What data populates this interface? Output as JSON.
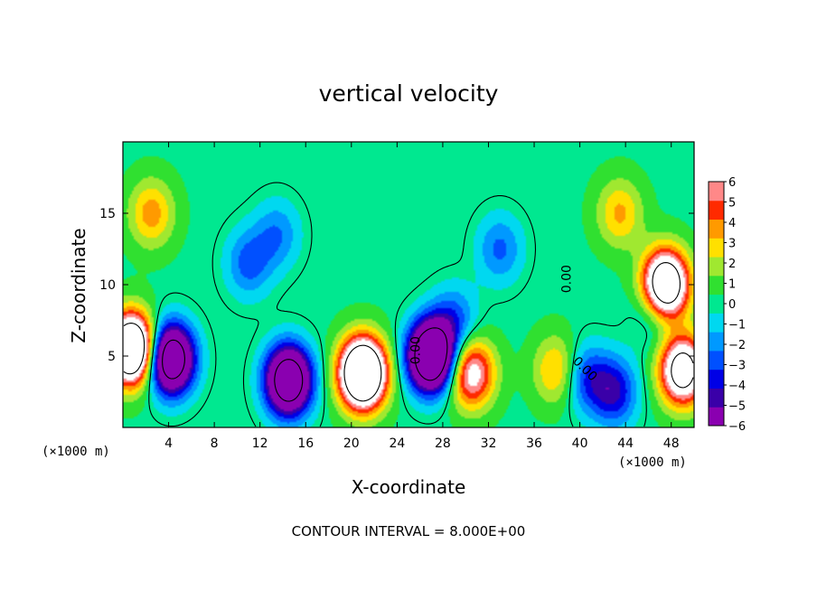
{
  "chart_data": {
    "type": "heatmap",
    "title": "vertical velocity",
    "xlabel": "X-coordinate",
    "ylabel": "Z-coordinate",
    "x_unit_label": "(×1000 m)",
    "footer": "CONTOUR INTERVAL = 8.000E+00",
    "xlim": [
      0,
      50
    ],
    "ylim": [
      0,
      20
    ],
    "x_ticks": [
      4,
      8,
      12,
      16,
      20,
      24,
      28,
      32,
      36,
      40,
      44,
      48
    ],
    "y_ticks": [
      5,
      10,
      15
    ],
    "contour_label": "0.00",
    "colorbar": {
      "range": [
        -6,
        6
      ],
      "ticks": [
        6,
        5,
        4,
        3,
        2,
        1,
        0,
        -1,
        -2,
        -3,
        -4,
        -5,
        -6
      ],
      "above_max_color": "#ffffff",
      "colors": [
        "#8a00b0",
        "#3a00a8",
        "#0000e6",
        "#0050ff",
        "#0099ff",
        "#00d8f0",
        "#00e890",
        "#30e030",
        "#a0e830",
        "#ffe000",
        "#ff9a00",
        "#ff2a00",
        "#ff8888"
      ]
    },
    "features": [
      {
        "x": 0.8,
        "z": 5.5,
        "w": 14
      },
      {
        "x": 4.2,
        "z": 4.8,
        "w": -12
      },
      {
        "x": 14.5,
        "z": 3.3,
        "w": -12
      },
      {
        "x": 21.0,
        "z": 3.8,
        "w": 15
      },
      {
        "x": 27.0,
        "z": 5.0,
        "w": -14
      },
      {
        "x": 30.5,
        "z": 3.8,
        "w": 7
      },
      {
        "x": 11.0,
        "z": 11.5,
        "w": -3
      },
      {
        "x": 13.5,
        "z": 13.5,
        "w": -2.5
      },
      {
        "x": 33.0,
        "z": 12.5,
        "w": -2.8
      },
      {
        "x": 29.0,
        "z": 7.5,
        "w": -3
      },
      {
        "x": 2.5,
        "z": 15.0,
        "w": 3.5
      },
      {
        "x": 43.5,
        "z": 15.0,
        "w": 3.2
      },
      {
        "x": 47.5,
        "z": 10.0,
        "w": 12
      },
      {
        "x": 49.0,
        "z": 4.0,
        "w": 10
      },
      {
        "x": 46.5,
        "z": 8.0,
        "w": -2
      },
      {
        "x": 38.0,
        "z": 4.0,
        "w": 3.5
      },
      {
        "x": 40.5,
        "z": 3.5,
        "w": -3.5
      },
      {
        "x": 43.0,
        "z": 2.5,
        "w": -4.5
      }
    ]
  }
}
